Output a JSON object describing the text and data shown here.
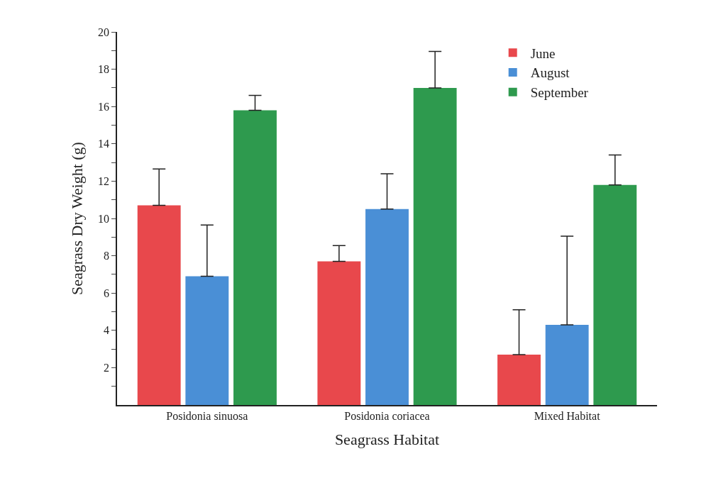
{
  "chart_data": {
    "type": "bar",
    "xlabel": "Seagrass Habitat",
    "ylabel": "Seagrass Dry Weight (g)",
    "categories": [
      "Posidonia sinuosa",
      "Posidonia coriacea",
      "Mixed Habitat"
    ],
    "series": [
      {
        "name": "June",
        "color": "#e8484c",
        "values": [
          10.7,
          7.7,
          2.7
        ],
        "errors": [
          [
            10.7,
            12.65
          ],
          [
            7.7,
            8.55
          ],
          [
            2.7,
            5.1
          ]
        ]
      },
      {
        "name": "August",
        "color": "#4a8fd6",
        "values": [
          6.9,
          10.5,
          4.3
        ],
        "errors": [
          [
            6.9,
            9.65
          ],
          [
            10.5,
            12.4
          ],
          [
            4.3,
            9.05
          ]
        ]
      },
      {
        "name": "September",
        "color": "#2e9a4e",
        "values": [
          15.8,
          17.0,
          11.8
        ],
        "errors": [
          [
            15.8,
            16.6
          ],
          [
            17.0,
            18.95
          ],
          [
            11.8,
            13.4
          ]
        ]
      }
    ],
    "ylim": [
      0,
      20
    ],
    "yticks": [
      {
        "value": 1,
        "label": null
      },
      2,
      {
        "value": 3,
        "label": null
      },
      4,
      {
        "value": 5,
        "label": null
      },
      6,
      {
        "value": 7,
        "label": null
      },
      8,
      {
        "value": 9,
        "label": null
      },
      10,
      {
        "value": 11,
        "label": null
      },
      12,
      {
        "value": 13,
        "label": null
      },
      14,
      {
        "value": 15,
        "label": null
      },
      16,
      {
        "value": 17,
        "label": null
      },
      18,
      {
        "value": 19,
        "label": null
      },
      20
    ],
    "legend": "top right"
  }
}
